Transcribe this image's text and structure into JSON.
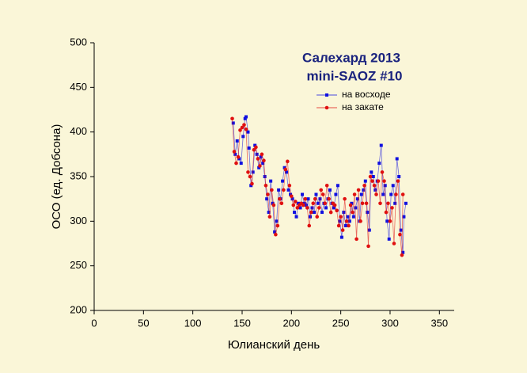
{
  "chart_data": {
    "type": "line",
    "title": "Салехард 2013",
    "subtitle": "mini-SAOZ #10",
    "x_label": "Юлианский день",
    "y_label": "ОСО (ед. Добсона)",
    "xlim": [
      0,
      365
    ],
    "ylim": [
      200,
      500
    ],
    "xticks": [
      0,
      50,
      100,
      150,
      200,
      250,
      300,
      350
    ],
    "yticks": [
      200,
      250,
      300,
      350,
      400,
      450,
      500
    ],
    "legend": "upper right",
    "series": [
      {
        "name": "на восходе",
        "color": "#1010e0",
        "marker": "square",
        "x": [
          141,
          143,
          145,
          147,
          149,
          151,
          153,
          154,
          156,
          157,
          159,
          161,
          163,
          165,
          167,
          169,
          171,
          173,
          175,
          177,
          179,
          181,
          183,
          185,
          187,
          189,
          191,
          193,
          195,
          197,
          199,
          201,
          203,
          205,
          207,
          209,
          211,
          213,
          215,
          217,
          219,
          221,
          223,
          225,
          227,
          229,
          231,
          233,
          235,
          237,
          239,
          241,
          243,
          245,
          247,
          249,
          251,
          253,
          255,
          257,
          259,
          261,
          263,
          265,
          267,
          269,
          271,
          273,
          275,
          277,
          279,
          281,
          283,
          285,
          287,
          289,
          291,
          293,
          295,
          297,
          299,
          301,
          303,
          305,
          307,
          309,
          311,
          313,
          314,
          316
        ],
        "values": [
          410,
          375,
          390,
          370,
          365,
          395,
          415,
          417,
          400,
          382,
          340,
          355,
          385,
          375,
          360,
          372,
          365,
          350,
          325,
          310,
          345,
          320,
          288,
          300,
          335,
          325,
          345,
          360,
          355,
          335,
          330,
          325,
          310,
          305,
          320,
          315,
          330,
          320,
          318,
          325,
          305,
          315,
          310,
          330,
          320,
          325,
          310,
          320,
          315,
          325,
          335,
          320,
          315,
          330,
          340,
          300,
          282,
          310,
          295,
          305,
          300,
          320,
          305,
          315,
          325,
          300,
          330,
          335,
          345,
          310,
          290,
          355,
          350,
          335,
          345,
          365,
          385,
          330,
          340,
          300,
          280,
          330,
          340,
          320,
          370,
          350,
          290,
          265,
          305,
          320
        ]
      },
      {
        "name": "на закате",
        "color": "#e01010",
        "marker": "circle",
        "x": [
          140,
          142,
          144,
          146,
          148,
          150,
          152,
          154,
          156,
          158,
          160,
          162,
          164,
          166,
          168,
          170,
          172,
          174,
          176,
          178,
          180,
          182,
          184,
          186,
          188,
          190,
          192,
          194,
          196,
          198,
          200,
          202,
          204,
          206,
          208,
          210,
          212,
          214,
          216,
          218,
          220,
          222,
          224,
          226,
          228,
          230,
          232,
          234,
          236,
          238,
          240,
          242,
          244,
          246,
          248,
          250,
          252,
          254,
          256,
          258,
          260,
          262,
          264,
          266,
          268,
          270,
          272,
          274,
          276,
          278,
          280,
          282,
          284,
          286,
          288,
          290,
          292,
          294,
          296,
          298,
          300,
          302,
          304,
          306,
          308,
          310,
          312,
          313
        ],
        "values": [
          415,
          378,
          365,
          372,
          402,
          405,
          408,
          403,
          355,
          350,
          342,
          380,
          383,
          370,
          362,
          375,
          368,
          340,
          330,
          305,
          335,
          318,
          285,
          295,
          325,
          320,
          335,
          358,
          367,
          340,
          328,
          318,
          322,
          315,
          318,
          320,
          318,
          325,
          315,
          295,
          310,
          320,
          325,
          305,
          315,
          335,
          330,
          320,
          340,
          325,
          310,
          320,
          318,
          312,
          295,
          305,
          290,
          325,
          300,
          295,
          318,
          310,
          330,
          280,
          335,
          300,
          320,
          340,
          320,
          272,
          350,
          345,
          340,
          330,
          345,
          320,
          355,
          345,
          310,
          320,
          300,
          315,
          275,
          330,
          345,
          285,
          262,
          330
        ]
      }
    ]
  }
}
